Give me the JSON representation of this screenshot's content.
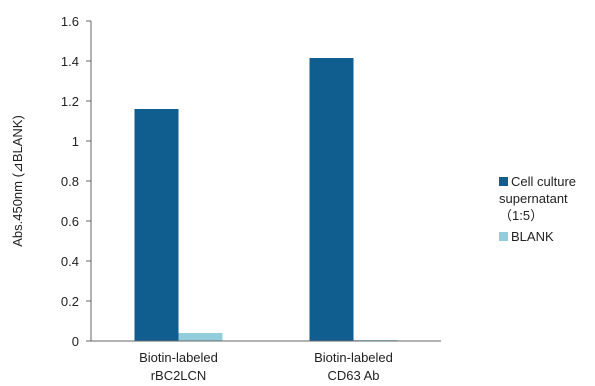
{
  "chart_data": {
    "type": "bar",
    "categories": [
      [
        "Biotin-labeled",
        "rBC2LCN"
      ],
      [
        "Biotin-labeled",
        "CD63 Ab"
      ]
    ],
    "series": [
      {
        "name": "Cell culture supernatant (1:5)",
        "legend_lines": [
          "Cell culture",
          "supernatant",
          "（1:5）"
        ],
        "values": [
          1.16,
          1.415
        ],
        "color": "#0f5e8f"
      },
      {
        "name": "BLANK",
        "legend_lines": [
          "BLANK"
        ],
        "values": [
          0.04,
          0.005
        ],
        "color": "#92cddc"
      }
    ],
    "ylabel": "Abs.450nm (⊿BLANK)",
    "xlabel": "",
    "ylim": [
      0,
      1.6
    ],
    "yticks": [
      "0",
      "0.2",
      "0.4",
      "0.6",
      "0.8",
      "1",
      "1.2",
      "1.4",
      "1.6"
    ],
    "grid": false,
    "legend_position": "right"
  }
}
